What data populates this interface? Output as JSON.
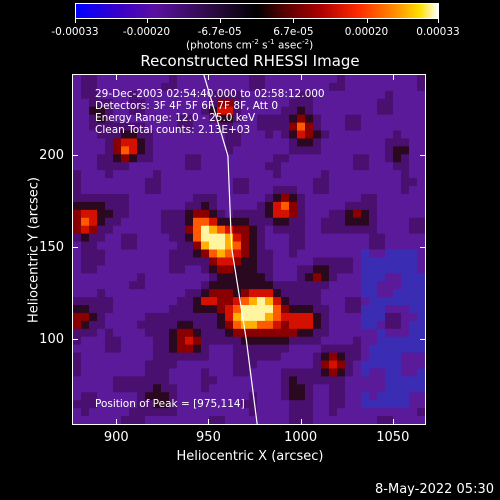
{
  "colorbar": {
    "tick_labels": [
      "-0.00033",
      "-0.00020",
      "-6.7e-05",
      "6.7e-05",
      "0.00020",
      "0.00033"
    ],
    "tick_values": [
      -0.00033,
      -0.0002,
      -6.7e-05,
      6.7e-05,
      0.0002,
      0.00033
    ],
    "units": "(photons cm",
    "units_exp1": "-2",
    "units_mid": " s",
    "units_exp2": "-1",
    "units_end": " asec",
    "units_exp3": "-2",
    "units_close": ")",
    "range": [
      -0.00033,
      0.00033
    ]
  },
  "chart_data": {
    "type": "heatmap",
    "title": "Reconstructed RHESSI Image",
    "xlabel": "Heliocentric X (arcsec)",
    "ylabel": "Heliocentric Y (arcsec)",
    "xlim": [
      876,
      1068
    ],
    "ylim": [
      53,
      244
    ],
    "x_ticks": [
      900,
      950,
      1000,
      1050
    ],
    "y_ticks": [
      100,
      150,
      200
    ],
    "x_tick_labels": [
      "900",
      "950",
      "1000",
      "1050"
    ],
    "y_tick_labels": [
      "100",
      "150",
      "200"
    ],
    "peak": {
      "x": 975,
      "y": 114
    },
    "limb_line": [
      [
        947,
        244
      ],
      [
        960,
        200
      ],
      [
        962,
        150
      ],
      [
        970,
        100
      ],
      [
        976,
        53
      ]
    ],
    "annotations": [
      "29-Dec-2003 02:54:40.000 to 02:58:12.000",
      "Detectors: 3F 4F 5F 6F 7F 8F, Att 0",
      "Energy Range: 12.0 - 25.0 keV",
      "Clean     Total counts: 2.13E+03"
    ],
    "peak_label": "Position of Peak = [975,114]"
  },
  "timestamp": "8-May-2022 05:30"
}
